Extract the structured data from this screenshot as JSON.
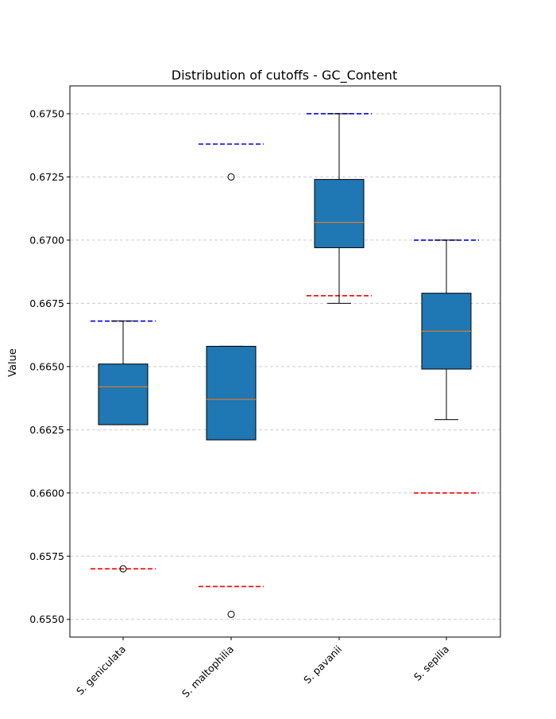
{
  "chart_data": {
    "type": "box",
    "title": "Distribution of cutoffs - GC_Content",
    "xlabel": "",
    "ylabel": "Value",
    "ylim": [
      0.6543,
      0.6761
    ],
    "yticks": [
      0.655,
      0.6575,
      0.66,
      0.6625,
      0.665,
      0.6675,
      0.67,
      0.6725,
      0.675
    ],
    "ytick_labels": [
      "0.6550",
      "0.6575",
      "0.6600",
      "0.6625",
      "0.6650",
      "0.6675",
      "0.6700",
      "0.6725",
      "0.6750"
    ],
    "grid": "y-dashed",
    "categories": [
      "S. geniculata",
      "S. maltophilia",
      "S. pavanii",
      "S. sepilia"
    ],
    "boxes": [
      {
        "whisker_low": 0.6627,
        "q1": 0.6627,
        "median": 0.6642,
        "q3": 0.6651,
        "whisker_high": 0.6668,
        "outliers": [
          0.657
        ]
      },
      {
        "whisker_low": 0.6621,
        "q1": 0.6621,
        "median": 0.6637,
        "q3": 0.6658,
        "whisker_high": 0.6658,
        "outliers": [
          0.6725,
          0.6552
        ]
      },
      {
        "whisker_low": 0.6675,
        "q1": 0.6697,
        "median": 0.6707,
        "q3": 0.6724,
        "whisker_high": 0.675,
        "outliers": []
      },
      {
        "whisker_low": 0.6629,
        "q1": 0.6649,
        "median": 0.6664,
        "q3": 0.6679,
        "whisker_high": 0.67,
        "outliers": []
      }
    ],
    "upper_cutoffs": [
      0.6668,
      0.6738,
      0.675,
      0.67
    ],
    "lower_cutoffs": [
      0.657,
      0.6563,
      0.6678,
      0.66
    ],
    "colors": {
      "box_fill": "#1f77b4",
      "median": "#ff7f0e",
      "upper_cutoff": "#0000ff",
      "lower_cutoff": "#ff0000",
      "grid": "#cccccc"
    }
  }
}
